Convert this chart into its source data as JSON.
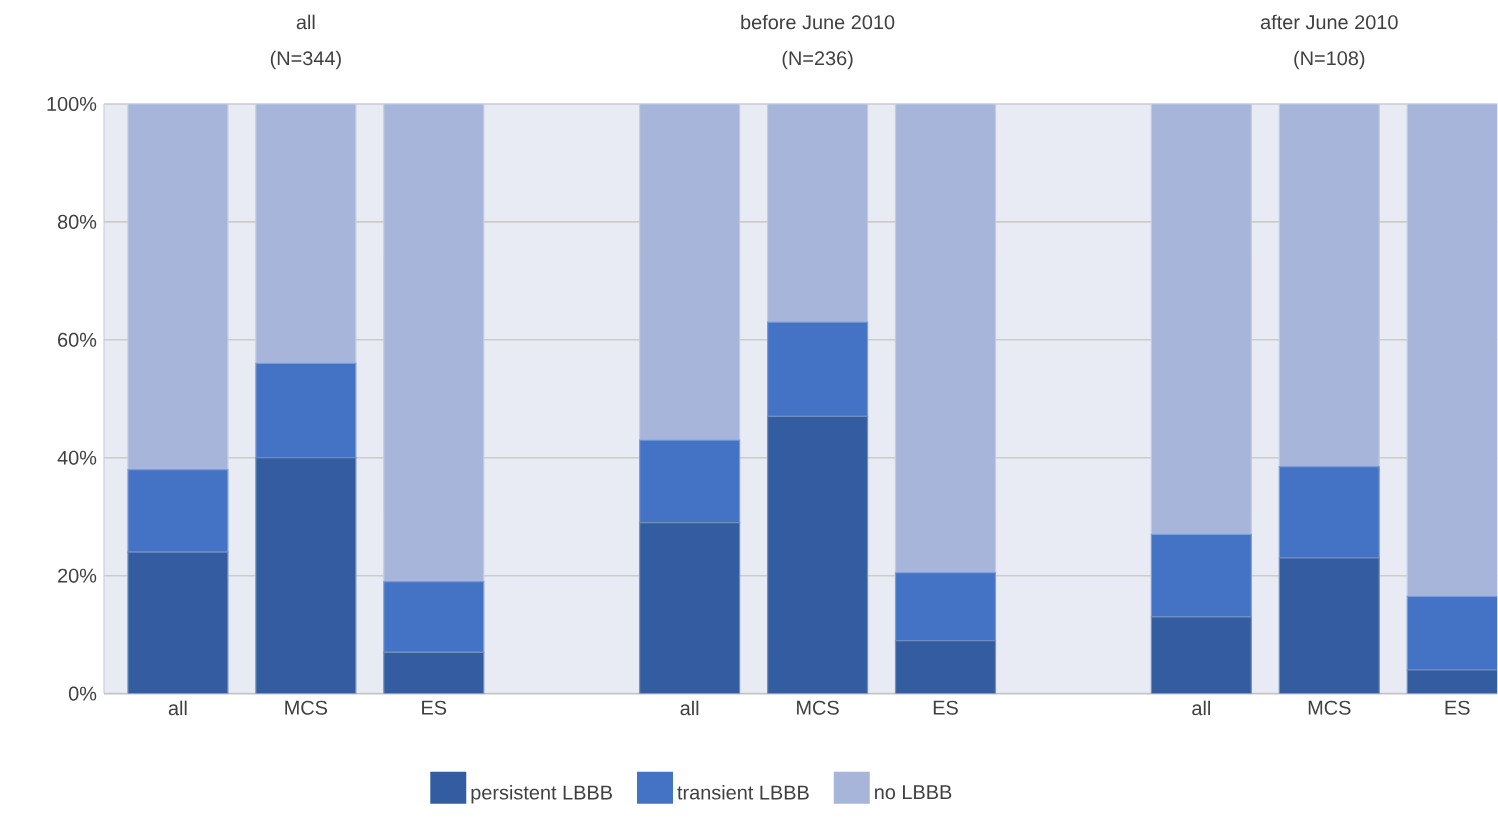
{
  "chart_data": {
    "type": "bar",
    "stacked": true,
    "categories": [
      "all",
      "MCS",
      "ES",
      null,
      "all",
      "MCS",
      "ES",
      null,
      "all",
      "MCS",
      "ES"
    ],
    "series": [
      {
        "name": "persistent LBBB",
        "color": "#345da1",
        "values": [
          24,
          40,
          7,
          null,
          29,
          47,
          9,
          null,
          13,
          23,
          4
        ]
      },
      {
        "name": "transient LBBB",
        "color": "#4472c4",
        "values": [
          14,
          16,
          12,
          null,
          14,
          16,
          11.5,
          null,
          14,
          15.5,
          12.5
        ]
      },
      {
        "name": "no LBBB",
        "color": "#a7b5da",
        "values": [
          62,
          44,
          81,
          null,
          57,
          37,
          79.5,
          null,
          73,
          61.5,
          83.5
        ]
      }
    ],
    "ylim": [
      0,
      100
    ],
    "yticks": [
      {
        "value": 0,
        "label": "0%"
      },
      {
        "value": 20,
        "label": "20%"
      },
      {
        "value": 40,
        "label": "40%"
      },
      {
        "value": 60,
        "label": "60%"
      },
      {
        "value": 80,
        "label": "80%"
      },
      {
        "value": 100,
        "label": "100%"
      }
    ],
    "grid": "y",
    "legend": "bottom",
    "annotations": [
      "all",
      "(N=344)",
      "before June 2010",
      "(N=236)",
      "after June 2010",
      "(N=108)"
    ]
  }
}
